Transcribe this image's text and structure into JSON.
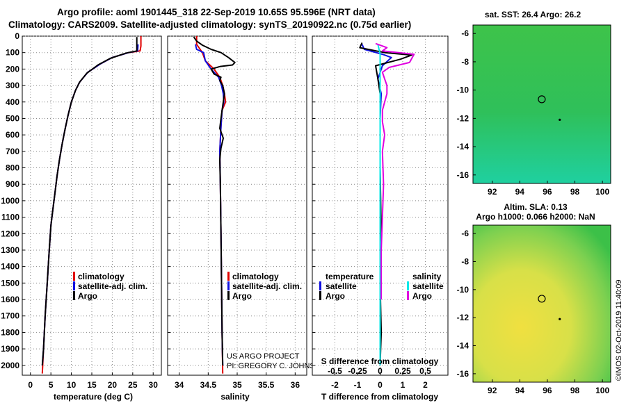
{
  "header": {
    "line1": "Argo profile: aoml 1901445_318 22-Sep-2019 10.65S 95.596E (NRT data)",
    "line2": "Climatology: CARS2009. Satellite-adjusted climatology: synTS_20190922.nc (0.75d earlier)"
  },
  "colors": {
    "climatology": "#e00000",
    "satellite": "#1010e0",
    "argo": "#000000",
    "sat_sal": "#00e8e8",
    "argo_sal": "#e000e0"
  },
  "chart_data": [
    {
      "type": "line",
      "name": "temperature",
      "xlabel": "temperature (deg C)",
      "ylabel": "",
      "xlim": [
        -2,
        32
      ],
      "ylim": [
        2060,
        0
      ],
      "xticks": [
        0,
        5,
        10,
        15,
        20,
        25,
        30
      ],
      "yticks": [
        0,
        100,
        200,
        300,
        400,
        500,
        600,
        700,
        800,
        900,
        1000,
        1100,
        1200,
        1300,
        1400,
        1500,
        1600,
        1700,
        1800,
        1900,
        2000
      ],
      "legend": [
        "climatology",
        "satellite-adj. clim.",
        "Argo"
      ],
      "series": [
        {
          "name": "climatology",
          "color": "#e00000",
          "points": [
            [
              27.0,
              0
            ],
            [
              27.0,
              60
            ],
            [
              26.8,
              90
            ],
            [
              24,
              100
            ],
            [
              20,
              130
            ],
            [
              17,
              170
            ],
            [
              14,
              220
            ],
            [
              12,
              280
            ],
            [
              11,
              330
            ],
            [
              10,
              400
            ],
            [
              9.2,
              480
            ],
            [
              8.5,
              560
            ],
            [
              7.8,
              650
            ],
            [
              7.1,
              750
            ],
            [
              6.5,
              850
            ],
            [
              6.0,
              950
            ],
            [
              5.5,
              1050
            ],
            [
              5.0,
              1150
            ],
            [
              4.6,
              1300
            ],
            [
              4.1,
              1500
            ],
            [
              3.6,
              1700
            ],
            [
              3.2,
              1900
            ],
            [
              2.9,
              2050
            ]
          ]
        },
        {
          "name": "satellite-adj. clim.",
          "color": "#1010e0",
          "points": [
            [
              26.3,
              50
            ],
            [
              26.2,
              90
            ],
            [
              24,
              100
            ],
            [
              20,
              130
            ],
            [
              17,
              170
            ],
            [
              14,
              220
            ],
            [
              12,
              280
            ],
            [
              11,
              330
            ],
            [
              10,
              400
            ],
            [
              9.2,
              480
            ],
            [
              8.5,
              560
            ],
            [
              7.8,
              650
            ],
            [
              7.1,
              750
            ],
            [
              6.5,
              850
            ],
            [
              6.0,
              950
            ],
            [
              5.5,
              1050
            ],
            [
              5.0,
              1150
            ],
            [
              4.6,
              1300
            ],
            [
              4.1,
              1500
            ],
            [
              3.6,
              1700
            ],
            [
              3.2,
              1900
            ],
            [
              2.9,
              2000
            ]
          ]
        },
        {
          "name": "Argo",
          "color": "#000000",
          "points": [
            [
              26.0,
              5
            ],
            [
              26.0,
              90
            ],
            [
              23.5,
              102
            ],
            [
              19.5,
              135
            ],
            [
              16.5,
              175
            ],
            [
              13.8,
              225
            ],
            [
              12,
              280
            ],
            [
              11,
              330
            ],
            [
              10,
              400
            ],
            [
              9.2,
              480
            ],
            [
              8.5,
              560
            ],
            [
              7.8,
              650
            ],
            [
              7.1,
              750
            ],
            [
              6.5,
              850
            ],
            [
              6.0,
              950
            ],
            [
              5.5,
              1050
            ],
            [
              5.0,
              1150
            ],
            [
              4.6,
              1300
            ],
            [
              4.1,
              1500
            ],
            [
              3.6,
              1700
            ],
            [
              3.2,
              1900
            ],
            [
              2.9,
              2000
            ]
          ]
        }
      ]
    },
    {
      "type": "line",
      "name": "salinity",
      "xlabel": "salinity",
      "xlim": [
        33.8,
        36.2
      ],
      "ylim": [
        2060,
        0
      ],
      "xticks": [
        34,
        34.5,
        35,
        35.5,
        36
      ],
      "xtick_labels": [
        "34",
        "34.5",
        "35",
        "35.5",
        "36"
      ],
      "legend": [
        "climatology",
        "satellite-adj. clim.",
        "Argo"
      ],
      "footnote": [
        "US ARGO PROJECT",
        "PI: GREGORY C. JOHNSON"
      ],
      "series": [
        {
          "name": "climatology",
          "color": "#e00000",
          "points": [
            [
              34.3,
              0
            ],
            [
              34.3,
              50
            ],
            [
              34.4,
              100
            ],
            [
              34.45,
              150
            ],
            [
              34.6,
              200
            ],
            [
              34.7,
              250
            ],
            [
              34.75,
              300
            ],
            [
              34.78,
              350
            ],
            [
              34.8,
              400
            ],
            [
              34.74,
              450
            ],
            [
              34.72,
              550
            ],
            [
              34.7,
              700
            ],
            [
              34.71,
              900
            ],
            [
              34.72,
              1200
            ],
            [
              34.73,
              1500
            ],
            [
              34.74,
              1800
            ],
            [
              34.75,
              2050
            ]
          ]
        },
        {
          "name": "satellite-adj. clim.",
          "color": "#1010e0",
          "points": [
            [
              34.28,
              50
            ],
            [
              34.3,
              80
            ],
            [
              34.42,
              100
            ],
            [
              34.45,
              150
            ],
            [
              34.55,
              200
            ],
            [
              34.68,
              250
            ],
            [
              34.73,
              300
            ],
            [
              34.76,
              350
            ],
            [
              34.77,
              400
            ],
            [
              34.74,
              450
            ],
            [
              34.72,
              550
            ],
            [
              34.7,
              700
            ],
            [
              34.71,
              900
            ],
            [
              34.72,
              1200
            ],
            [
              34.73,
              1500
            ],
            [
              34.74,
              1800
            ],
            [
              34.75,
              2000
            ]
          ]
        },
        {
          "name": "Argo",
          "color": "#000000",
          "points": [
            [
              34.25,
              5
            ],
            [
              34.3,
              30
            ],
            [
              34.4,
              55
            ],
            [
              34.55,
              80
            ],
            [
              34.72,
              100
            ],
            [
              34.85,
              130
            ],
            [
              34.96,
              160
            ],
            [
              34.92,
              175
            ],
            [
              34.7,
              185
            ],
            [
              34.55,
              200
            ],
            [
              34.6,
              230
            ],
            [
              34.72,
              250
            ],
            [
              34.7,
              270
            ],
            [
              34.75,
              300
            ],
            [
              34.78,
              350
            ],
            [
              34.76,
              400
            ],
            [
              34.74,
              450
            ],
            [
              34.72,
              500
            ],
            [
              34.7,
              560
            ],
            [
              34.76,
              620
            ],
            [
              34.72,
              680
            ],
            [
              34.7,
              750
            ],
            [
              34.71,
              900
            ],
            [
              34.72,
              1200
            ],
            [
              34.73,
              1500
            ],
            [
              34.74,
              1800
            ],
            [
              34.75,
              2000
            ]
          ]
        }
      ]
    },
    {
      "type": "line",
      "name": "difference from climatology",
      "xlabel": "T difference from climatology",
      "x2label": "S difference from climatology",
      "xlim": [
        -3,
        3
      ],
      "ylim": [
        2060,
        0
      ],
      "xticks": [
        -2,
        -1,
        0,
        1,
        2
      ],
      "x2ticks": [
        "-0.5",
        "-0.25",
        "0",
        "0.25",
        "0.5"
      ],
      "legend_temperature": [
        "temperature",
        "satellite",
        "Argo"
      ],
      "legend_salinity": [
        "salinity",
        "satellite",
        "Argo"
      ],
      "series": [
        {
          "name": "T satellite",
          "color": "#1010e0",
          "points": [
            [
              -0.8,
              50
            ],
            [
              -0.7,
              80
            ],
            [
              0.1,
              110
            ],
            [
              0.5,
              130
            ],
            [
              0.1,
              180
            ],
            [
              -0.1,
              260
            ],
            [
              0.05,
              350
            ],
            [
              0.0,
              500
            ],
            [
              0.0,
              800
            ],
            [
              0.0,
              1200
            ],
            [
              0.0,
              2000
            ]
          ]
        },
        {
          "name": "T Argo",
          "color": "#000000",
          "points": [
            [
              -0.8,
              40
            ],
            [
              -0.9,
              70
            ],
            [
              0.2,
              100
            ],
            [
              1.4,
              115
            ],
            [
              0.9,
              140
            ],
            [
              -0.2,
              180
            ],
            [
              -0.1,
              260
            ],
            [
              0.0,
              350
            ],
            [
              0.0,
              500
            ],
            [
              0.0,
              800
            ],
            [
              0.05,
              1200
            ],
            [
              0.0,
              1500
            ],
            [
              0.05,
              1800
            ],
            [
              0.0,
              2000
            ]
          ]
        },
        {
          "name": "S satellite",
          "color": "#00e8e8",
          "points": [
            [
              -0.1,
              50
            ],
            [
              -0.05,
              80
            ],
            [
              0.0,
              110
            ],
            [
              0.0,
              200
            ],
            [
              0.0,
              300
            ],
            [
              0.0,
              500
            ],
            [
              0.0,
              800
            ],
            [
              0.0,
              1200
            ],
            [
              0.0,
              2000
            ]
          ]
        },
        {
          "name": "S Argo",
          "color": "#e000e0",
          "points": [
            [
              -0.2,
              45
            ],
            [
              0.3,
              70
            ],
            [
              0.1,
              90
            ],
            [
              1.5,
              110
            ],
            [
              1.3,
              160
            ],
            [
              0.4,
              190
            ],
            [
              0.1,
              220
            ],
            [
              0.2,
              260
            ],
            [
              0.3,
              300
            ],
            [
              0.3,
              350
            ],
            [
              0.1,
              450
            ],
            [
              0.1,
              520
            ],
            [
              0.2,
              600
            ],
            [
              0.1,
              700
            ],
            [
              0.15,
              900
            ],
            [
              0.1,
              1100
            ],
            [
              0.05,
              1300
            ],
            [
              0.05,
              1600
            ]
          ]
        }
      ]
    }
  ],
  "axis": {
    "depth_ticks": [
      "0",
      "100",
      "200",
      "300",
      "400",
      "500",
      "600",
      "700",
      "800",
      "900",
      "1000",
      "1100",
      "1200",
      "1300",
      "1400",
      "1500",
      "1600",
      "1700",
      "1800",
      "1900",
      "2000"
    ]
  },
  "maps": {
    "sst_title": "sat. SST: 26.4 Argo: 26.2",
    "sla_title1": "Altim. SLA: 0.13",
    "sla_title2": "Argo h1000: 0.066 h2000: NaN",
    "yticks": [
      "-6",
      "-8",
      "-10",
      "-12",
      "-14",
      "-16"
    ],
    "xticks": [
      "92",
      "94",
      "96",
      "98",
      "100"
    ],
    "xlim": [
      90.6,
      100.6
    ],
    "ylim": [
      -16.6,
      -5.4
    ],
    "float_position": {
      "lon": 95.596,
      "lat": -10.65
    },
    "track_point": {
      "lon": 96.9,
      "lat": -12.1
    }
  },
  "credit": "©IMOS 02-Oct-2019 11:40:09"
}
